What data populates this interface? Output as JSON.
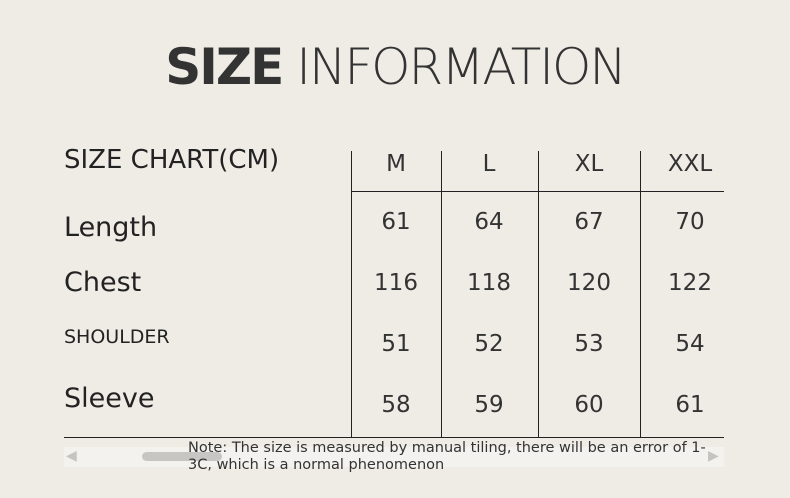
{
  "title": {
    "bold": "SIZE",
    "light": "INFORMATION"
  },
  "table": {
    "header": "SIZE CHART(CM)",
    "sizes": [
      "M",
      "L",
      "XL",
      "XXL"
    ],
    "rows": [
      {
        "label": "Length",
        "values": [
          "61",
          "64",
          "67",
          "70"
        ]
      },
      {
        "label": "Chest",
        "values": [
          "116",
          "118",
          "120",
          "122"
        ]
      },
      {
        "label": "SHOULDER",
        "values": [
          "51",
          "52",
          "53",
          "54"
        ]
      },
      {
        "label": "Sleeve",
        "values": [
          "58",
          "59",
          "60",
          "61"
        ]
      }
    ]
  },
  "note": "Note: The size is measured by manual tiling, there will be an error of 1-3C, which is a normal phenomenon",
  "scrollbar": {
    "left_icon": "arrow-left-icon",
    "right_icon": "arrow-right-icon"
  }
}
